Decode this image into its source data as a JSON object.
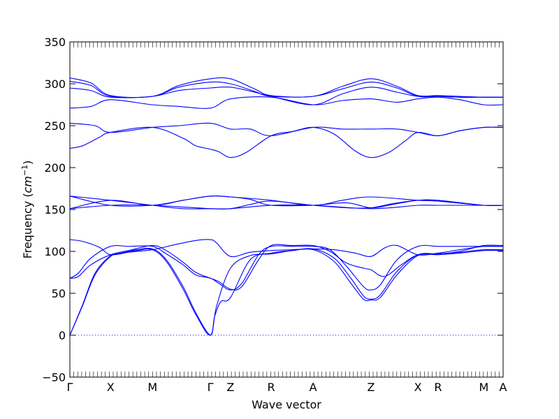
{
  "chart_data": {
    "type": "line",
    "xlabel": "Wave vector",
    "ylabel_prefix": "Frequency (",
    "ylabel_unit": "cm",
    "ylabel_exp": "−1",
    "ylabel_suffix": ")",
    "ylim": [
      -50,
      350
    ],
    "yticks": [
      -50,
      0,
      50,
      100,
      150,
      200,
      250,
      300,
      350
    ],
    "xlim": [
      0,
      10.33
    ],
    "high_symmetry_points": [
      {
        "label": "Γ",
        "x": 0
      },
      {
        "label": "X",
        "x": 0.97
      },
      {
        "label": "M",
        "x": 1.97
      },
      {
        "label": "Γ",
        "x": 3.35
      },
      {
        "label": "Z",
        "x": 3.83
      },
      {
        "label": "R",
        "x": 4.8
      },
      {
        "label": "A",
        "x": 5.8
      },
      {
        "label": "Z",
        "x": 7.18
      },
      {
        "label": "X",
        "x": 8.3
      },
      {
        "label": "R",
        "x": 8.78
      },
      {
        "label": "M",
        "x": 9.87
      },
      {
        "label": "A",
        "x": 10.33
      }
    ],
    "grid": false,
    "colors": {
      "band": "#0000ff",
      "zero_line": "#0000ff"
    },
    "series": [
      {
        "points": [
          [
            0,
            0
          ],
          [
            0.3,
            35
          ],
          [
            0.6,
            72
          ],
          [
            0.97,
            94
          ],
          [
            1.2,
            97
          ],
          [
            1.6,
            101
          ],
          [
            1.97,
            102
          ],
          [
            2.3,
            88
          ],
          [
            2.7,
            55
          ],
          [
            3.0,
            25
          ],
          [
            3.35,
            0
          ],
          [
            3.5,
            35
          ],
          [
            3.83,
            80
          ],
          [
            4.3,
            95
          ],
          [
            4.8,
            97
          ],
          [
            5.3,
            101
          ],
          [
            5.8,
            102
          ],
          [
            6.3,
            88
          ],
          [
            6.7,
            62
          ],
          [
            7.0,
            43
          ],
          [
            7.18,
            42
          ],
          [
            7.4,
            45
          ],
          [
            7.8,
            72
          ],
          [
            8.3,
            95
          ],
          [
            8.78,
            96
          ],
          [
            9.3,
            98
          ],
          [
            9.87,
            101
          ],
          [
            10.33,
            101
          ]
        ]
      },
      {
        "points": [
          [
            0,
            0
          ],
          [
            0.3,
            36
          ],
          [
            0.6,
            74
          ],
          [
            0.97,
            95
          ],
          [
            1.2,
            98
          ],
          [
            1.6,
            102
          ],
          [
            1.97,
            103
          ],
          [
            2.3,
            90
          ],
          [
            2.7,
            58
          ],
          [
            3.0,
            27
          ],
          [
            3.35,
            0
          ],
          [
            3.45,
            22
          ],
          [
            3.6,
            40
          ],
          [
            3.83,
            45
          ],
          [
            4.3,
            90
          ],
          [
            4.8,
            98
          ],
          [
            5.3,
            101
          ],
          [
            5.8,
            103
          ],
          [
            6.3,
            92
          ],
          [
            6.7,
            68
          ],
          [
            7.0,
            47
          ],
          [
            7.18,
            43
          ],
          [
            7.4,
            48
          ],
          [
            7.8,
            76
          ],
          [
            8.3,
            96
          ],
          [
            8.78,
            97
          ],
          [
            9.3,
            99
          ],
          [
            9.87,
            102
          ],
          [
            10.33,
            102
          ]
        ]
      },
      {
        "points": [
          [
            0,
            68
          ],
          [
            0.2,
            74
          ],
          [
            0.5,
            92
          ],
          [
            0.97,
            106
          ],
          [
            1.4,
            106
          ],
          [
            1.97,
            106
          ],
          [
            2.3,
            97
          ],
          [
            2.7,
            84
          ],
          [
            3.0,
            72
          ],
          [
            3.35,
            68
          ],
          [
            3.55,
            62
          ],
          [
            3.83,
            54
          ],
          [
            4.1,
            62
          ],
          [
            4.5,
            96
          ],
          [
            4.8,
            106
          ],
          [
            5.3,
            106
          ],
          [
            5.8,
            106
          ],
          [
            6.2,
            102
          ],
          [
            6.6,
            82
          ],
          [
            7.0,
            58
          ],
          [
            7.18,
            54
          ],
          [
            7.4,
            60
          ],
          [
            7.8,
            90
          ],
          [
            8.3,
            106
          ],
          [
            8.78,
            106
          ],
          [
            9.3,
            106
          ],
          [
            9.87,
            106
          ],
          [
            10.33,
            106
          ]
        ]
      },
      {
        "points": [
          [
            0,
            68
          ],
          [
            0.2,
            70
          ],
          [
            0.5,
            84
          ],
          [
            0.97,
            96
          ],
          [
            1.4,
            101
          ],
          [
            1.97,
            107
          ],
          [
            2.3,
            101
          ],
          [
            2.7,
            87
          ],
          [
            3.0,
            75
          ],
          [
            3.35,
            68
          ],
          [
            3.55,
            64
          ],
          [
            3.83,
            55
          ],
          [
            4.1,
            58
          ],
          [
            4.5,
            90
          ],
          [
            4.8,
            107
          ],
          [
            5.3,
            107
          ],
          [
            5.8,
            107
          ],
          [
            6.2,
            100
          ],
          [
            6.6,
            86
          ],
          [
            7.0,
            80
          ],
          [
            7.18,
            78
          ],
          [
            7.5,
            70
          ],
          [
            7.9,
            84
          ],
          [
            8.3,
            96
          ],
          [
            8.78,
            97
          ],
          [
            9.3,
            100
          ],
          [
            9.87,
            107
          ],
          [
            10.33,
            107
          ]
        ]
      },
      {
        "points": [
          [
            0,
            114
          ],
          [
            0.3,
            112
          ],
          [
            0.7,
            105
          ],
          [
            0.97,
            96
          ],
          [
            1.4,
            99
          ],
          [
            1.97,
            102
          ],
          [
            2.5,
            108
          ],
          [
            3.0,
            113
          ],
          [
            3.35,
            114
          ],
          [
            3.5,
            110
          ],
          [
            3.83,
            94
          ],
          [
            4.3,
            99
          ],
          [
            4.8,
            101
          ],
          [
            5.3,
            102
          ],
          [
            5.8,
            103
          ],
          [
            6.3,
            102
          ],
          [
            6.8,
            98
          ],
          [
            7.18,
            94
          ],
          [
            7.5,
            104
          ],
          [
            7.8,
            107
          ],
          [
            8.3,
            96
          ],
          [
            8.78,
            98
          ],
          [
            9.3,
            102
          ],
          [
            9.87,
            106
          ],
          [
            10.33,
            106
          ]
        ]
      },
      {
        "points": [
          [
            0,
            151
          ],
          [
            0.97,
            155
          ],
          [
            1.97,
            155
          ],
          [
            3.35,
            151
          ],
          [
            3.83,
            151
          ],
          [
            4.8,
            155
          ],
          [
            5.8,
            155
          ],
          [
            7.18,
            151
          ],
          [
            8.3,
            155
          ],
          [
            8.78,
            155
          ],
          [
            9.87,
            155
          ],
          [
            10.33,
            155
          ]
        ]
      },
      {
        "points": [
          [
            0,
            151
          ],
          [
            0.97,
            161
          ],
          [
            1.97,
            155
          ],
          [
            2.7,
            161
          ],
          [
            3.35,
            166
          ],
          [
            3.83,
            165
          ],
          [
            4.8,
            161
          ],
          [
            5.8,
            155
          ],
          [
            6.5,
            161
          ],
          [
            7.18,
            165
          ],
          [
            8.3,
            161
          ],
          [
            8.78,
            160
          ],
          [
            9.87,
            155
          ],
          [
            10.33,
            155
          ]
        ]
      },
      {
        "points": [
          [
            0,
            166
          ],
          [
            0.97,
            155
          ],
          [
            1.97,
            155
          ],
          [
            2.7,
            161
          ],
          [
            3.35,
            166
          ],
          [
            3.83,
            165
          ],
          [
            4.3,
            162
          ],
          [
            4.8,
            155
          ],
          [
            5.8,
            155
          ],
          [
            6.6,
            158
          ],
          [
            7.18,
            152
          ],
          [
            7.7,
            156
          ],
          [
            8.3,
            161
          ],
          [
            8.78,
            160
          ],
          [
            9.87,
            155
          ],
          [
            10.33,
            155
          ]
        ]
      },
      {
        "points": [
          [
            0,
            166
          ],
          [
            0.97,
            161
          ],
          [
            1.97,
            155
          ],
          [
            2.7,
            151
          ],
          [
            3.35,
            151
          ],
          [
            3.83,
            151
          ],
          [
            4.3,
            156
          ],
          [
            4.8,
            160
          ],
          [
            5.8,
            155
          ],
          [
            6.6,
            152
          ],
          [
            7.18,
            152
          ],
          [
            7.7,
            157
          ],
          [
            8.3,
            161
          ],
          [
            8.78,
            161
          ],
          [
            9.87,
            155
          ],
          [
            10.33,
            155
          ]
        ]
      },
      {
        "points": [
          [
            0,
            223
          ],
          [
            0.3,
            226
          ],
          [
            0.7,
            236
          ],
          [
            0.97,
            242
          ],
          [
            1.97,
            248
          ],
          [
            2.7,
            235
          ],
          [
            3.0,
            226
          ],
          [
            3.35,
            222
          ],
          [
            3.55,
            219
          ],
          [
            3.83,
            212
          ],
          [
            4.2,
            218
          ],
          [
            4.8,
            238
          ],
          [
            5.3,
            243
          ],
          [
            5.8,
            248
          ],
          [
            6.3,
            240
          ],
          [
            6.8,
            220
          ],
          [
            7.18,
            212
          ],
          [
            7.6,
            218
          ],
          [
            8.0,
            232
          ],
          [
            8.3,
            242
          ],
          [
            8.78,
            238
          ],
          [
            9.3,
            244
          ],
          [
            9.87,
            248
          ],
          [
            10.33,
            248
          ]
        ]
      },
      {
        "points": [
          [
            0,
            253
          ],
          [
            0.6,
            250
          ],
          [
            0.97,
            242
          ],
          [
            1.97,
            248
          ],
          [
            2.6,
            250
          ],
          [
            3.35,
            253
          ],
          [
            3.83,
            246
          ],
          [
            4.3,
            246
          ],
          [
            4.8,
            238
          ],
          [
            5.8,
            248
          ],
          [
            6.5,
            246
          ],
          [
            7.18,
            246
          ],
          [
            7.8,
            246
          ],
          [
            8.3,
            242
          ],
          [
            8.78,
            238
          ],
          [
            9.3,
            244
          ],
          [
            9.87,
            248
          ],
          [
            10.33,
            248
          ]
        ]
      },
      {
        "points": [
          [
            0,
            271
          ],
          [
            0.5,
            273
          ],
          [
            0.97,
            281
          ],
          [
            1.97,
            275
          ],
          [
            2.6,
            273
          ],
          [
            3.35,
            271
          ],
          [
            3.83,
            282
          ],
          [
            4.8,
            284
          ],
          [
            5.8,
            275
          ],
          [
            6.5,
            280
          ],
          [
            7.18,
            282
          ],
          [
            7.8,
            278
          ],
          [
            8.3,
            282
          ],
          [
            8.78,
            284
          ],
          [
            9.3,
            281
          ],
          [
            9.87,
            275
          ],
          [
            10.33,
            275
          ]
        ]
      },
      {
        "points": [
          [
            0,
            295
          ],
          [
            0.5,
            292
          ],
          [
            0.97,
            284
          ],
          [
            1.97,
            285
          ],
          [
            2.6,
            292
          ],
          [
            3.35,
            295
          ],
          [
            3.83,
            296
          ],
          [
            4.4,
            290
          ],
          [
            4.8,
            285
          ],
          [
            5.8,
            275
          ],
          [
            6.5,
            288
          ],
          [
            7.18,
            296
          ],
          [
            7.8,
            290
          ],
          [
            8.3,
            285
          ],
          [
            8.78,
            285
          ],
          [
            9.3,
            284
          ],
          [
            9.87,
            284
          ],
          [
            10.33,
            284
          ]
        ]
      },
      {
        "points": [
          [
            0,
            303
          ],
          [
            0.5,
            298
          ],
          [
            0.97,
            285
          ],
          [
            1.97,
            285
          ],
          [
            2.6,
            296
          ],
          [
            3.35,
            302
          ],
          [
            3.83,
            300
          ],
          [
            4.4,
            291
          ],
          [
            4.8,
            285
          ],
          [
            5.8,
            285
          ],
          [
            6.5,
            294
          ],
          [
            7.18,
            302
          ],
          [
            7.8,
            295
          ],
          [
            8.3,
            285
          ],
          [
            8.78,
            285
          ],
          [
            9.3,
            284
          ],
          [
            9.87,
            284
          ],
          [
            10.33,
            284
          ]
        ]
      },
      {
        "points": [
          [
            0,
            307
          ],
          [
            0.5,
            301
          ],
          [
            0.97,
            286
          ],
          [
            1.97,
            285
          ],
          [
            2.6,
            298
          ],
          [
            3.35,
            306
          ],
          [
            3.83,
            306
          ],
          [
            4.4,
            294
          ],
          [
            4.8,
            286
          ],
          [
            5.8,
            285
          ],
          [
            6.5,
            297
          ],
          [
            7.18,
            306
          ],
          [
            7.8,
            297
          ],
          [
            8.3,
            286
          ],
          [
            8.78,
            286
          ],
          [
            9.3,
            285
          ],
          [
            9.87,
            284
          ],
          [
            10.33,
            284
          ]
        ]
      }
    ]
  }
}
